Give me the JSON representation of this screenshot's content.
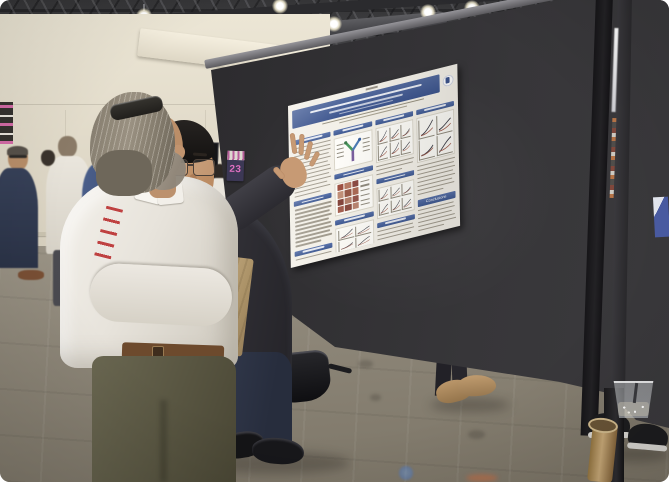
{
  "photo": {
    "alt": "Two attendees discuss a scientific research poster mounted on a dark poster board at a conference poster session",
    "placard_number": "23",
    "poster": {
      "conclusions_label": "Conclusions",
      "band_color": "#44609a",
      "paper_color": "#f3f0e8",
      "columns": [
        [
          {
            "t": "h"
          },
          {
            "t": "l",
            "n": 13
          },
          {
            "t": "h"
          },
          {
            "t": "l",
            "n": 10
          },
          {
            "t": "h"
          },
          {
            "t": "l",
            "n": 8
          }
        ],
        [
          {
            "t": "h"
          },
          {
            "t": "ab"
          },
          {
            "t": "h"
          },
          {
            "t": "img"
          },
          {
            "t": "h"
          },
          {
            "t": "charts",
            "c": 2,
            "r": 2,
            "h": 22
          },
          {
            "t": "l",
            "n": 2
          }
        ],
        [
          {
            "t": "h"
          },
          {
            "t": "charts",
            "c": 3,
            "r": 2,
            "h": 30
          },
          {
            "t": "l",
            "n": 3
          },
          {
            "t": "h"
          },
          {
            "t": "charts",
            "c": 3,
            "r": 2,
            "h": 26
          },
          {
            "t": "h"
          },
          {
            "t": "l",
            "n": 5
          }
        ],
        [
          {
            "t": "h"
          },
          {
            "t": "charts",
            "c": 2,
            "r": 2,
            "h": 40
          },
          {
            "t": "l",
            "n": 8
          },
          {
            "t": "hc"
          },
          {
            "t": "l",
            "n": 6
          },
          {
            "t": "h"
          },
          {
            "t": "l",
            "n": 3
          }
        ]
      ]
    },
    "palette": {
      "board": "#2e2d30",
      "wall": "#e2dccb",
      "carpet": "#8b8577",
      "ceiling": "#3f3f41",
      "suit_dark": "#35343a",
      "shirt_white": "#efece6",
      "shirt_blue": "#b7c4d3",
      "pants_olive": "#5f5c44",
      "pants_navy": "#2e3445",
      "skin": "#c79872",
      "bag_tan": "#c3a87c",
      "accent_blue": "#44609a",
      "placard_pink": "#e06ec2"
    }
  }
}
